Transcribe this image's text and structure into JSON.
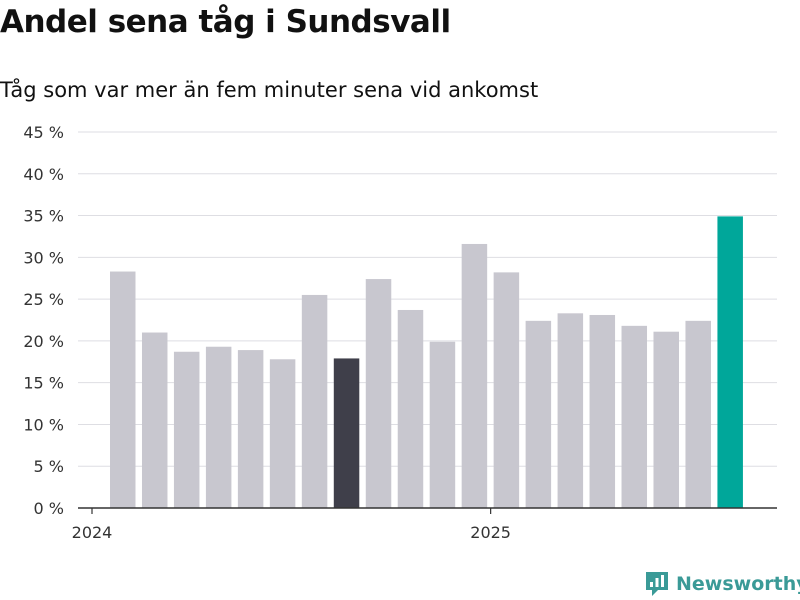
{
  "title": "Andel sena tåg i Sundsvall",
  "subtitle": "Tåg som var mer än fem minuter sena vid ankomst",
  "chart_data": {
    "type": "bar",
    "title": "Andel sena tåg i Sundsvall",
    "subtitle": "Tåg som var mer än fem minuter sena vid ankomst",
    "xlabel": "",
    "ylabel": "",
    "ylim": [
      0,
      45
    ],
    "y_ticks": [
      0,
      5,
      10,
      15,
      20,
      25,
      30,
      35,
      40,
      45
    ],
    "y_tick_labels": [
      "0 %",
      "5 %",
      "10 %",
      "15 %",
      "20 %",
      "25 %",
      "30 %",
      "35 %",
      "40 %",
      "45 %"
    ],
    "x_tick_labels": [
      "2024",
      "2025"
    ],
    "categories": [
      "2024-01",
      "2024-02",
      "2024-03",
      "2024-04",
      "2024-05",
      "2024-06",
      "2024-07",
      "2024-08",
      "2024-09",
      "2024-10",
      "2024-11",
      "2024-12",
      "2025-01",
      "2025-02",
      "2025-03",
      "2025-04",
      "2025-05",
      "2025-06",
      "2025-07",
      "2025-08"
    ],
    "values": [
      28.3,
      21.0,
      18.7,
      19.3,
      18.9,
      17.8,
      25.5,
      17.9,
      27.4,
      23.7,
      19.9,
      31.6,
      28.2,
      22.4,
      23.3,
      23.1,
      21.8,
      21.1,
      22.4,
      34.9
    ],
    "highlight": {
      "7": "#3f3f4a",
      "19": "#00a79a"
    },
    "default_color": "#c8c7cf",
    "grid": true
  },
  "brand": {
    "name": "Newsworthy",
    "color": "#3a9a97"
  }
}
